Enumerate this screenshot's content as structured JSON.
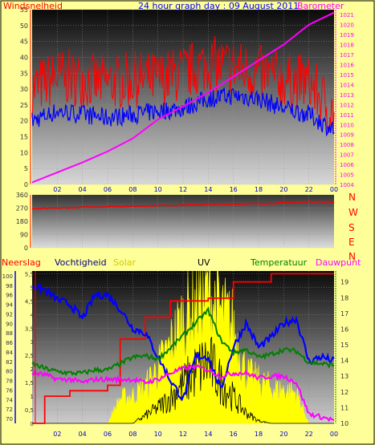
{
  "colors": {
    "background": "#FFFF99",
    "wind_label": "#FF0000",
    "barometer_label": "#FF00FF",
    "title": "#0000FF",
    "wind_gust": "#FF0000",
    "wind_avg": "#0000FF",
    "barometer_line": "#FF00FF",
    "wind_dir": "#FF0000",
    "rain": "#FF0000",
    "humidity": "#0000FF",
    "temperature": "#008000",
    "dewpoint": "#FF00FF",
    "uv": "#000000",
    "solar": "#FFFF00",
    "compass_letters": "#FF0000"
  },
  "header": {
    "title": "24 hour graph day : 09 August 2011",
    "left_label": "Windsnelheid",
    "right_label": "Barometer"
  },
  "compass": {
    "letters": [
      "N",
      "W",
      "S",
      "E",
      "N"
    ]
  },
  "bottom_header": {
    "rain_label": "Neerslag",
    "humidity_label": "Vochtigheid",
    "solar_label": "Solar",
    "uv_label": "UV",
    "temp_label": "Temperatuur",
    "dew_label": "Dauwpunt"
  },
  "x_ticks": [
    "02",
    "04",
    "06",
    "08",
    "10",
    "12",
    "14",
    "16",
    "18",
    "20",
    "22",
    "00"
  ],
  "chart_data": [
    {
      "type": "line",
      "name": "wind-barometer",
      "x_hours": [
        0,
        2,
        4,
        6,
        8,
        10,
        12,
        14,
        16,
        18,
        20,
        22,
        24
      ],
      "series": [
        {
          "name": "gust",
          "values": [
            30,
            34,
            33,
            32,
            33,
            33,
            35,
            38,
            37,
            35,
            33,
            32,
            22
          ]
        },
        {
          "name": "average",
          "values": [
            20,
            23,
            22,
            21,
            22,
            23,
            24,
            27,
            28,
            27,
            24,
            22,
            17
          ]
        },
        {
          "name": "barometer",
          "axis": "right",
          "values": [
            1004.2,
            1005.2,
            1006.2,
            1007.3,
            1008.6,
            1010.5,
            1011.8,
            1013.2,
            1014.8,
            1016.4,
            1018.0,
            1020.0,
            1021.2
          ]
        }
      ],
      "left_axis": {
        "ylim": [
          0,
          55
        ],
        "ticks": [
          "0",
          "5",
          "10",
          "15",
          "20",
          "25",
          "30",
          "35",
          "40",
          "45",
          "50",
          "55"
        ]
      },
      "right_axis": {
        "ylim": [
          1004,
          1021.5
        ],
        "ticks": [
          "1004",
          "1005",
          "1006",
          "1007",
          "1008",
          "1009",
          "1010",
          "1011",
          "1012",
          "1013",
          "1014",
          "1015",
          "1016",
          "1017",
          "1018",
          "1019",
          "1020",
          "1021"
        ]
      }
    },
    {
      "type": "line",
      "name": "wind-direction",
      "x_hours": [
        0,
        2,
        4,
        6,
        8,
        10,
        12,
        14,
        16,
        18,
        20,
        22,
        24
      ],
      "series": [
        {
          "name": "direction",
          "values": [
            265,
            270,
            275,
            280,
            283,
            287,
            290,
            295,
            298,
            300,
            305,
            315,
            310
          ]
        }
      ],
      "left_axis": {
        "ylim": [
          0,
          360
        ],
        "ticks": [
          "0",
          "90",
          "180",
          "270",
          "360"
        ]
      }
    },
    {
      "type": "line",
      "name": "climate",
      "x_hours": [
        0,
        1,
        2,
        3,
        4,
        5,
        6,
        7,
        8,
        9,
        10,
        11,
        12,
        13,
        14,
        15,
        16,
        17,
        18,
        19,
        20,
        21,
        22,
        23,
        24
      ],
      "series": [
        {
          "name": "rain",
          "axis": "mm",
          "values": [
            0,
            1.0,
            1.0,
            1.2,
            1.2,
            1.2,
            1.4,
            3.1,
            3.1,
            3.9,
            3.9,
            4.5,
            4.5,
            4.5,
            4.6,
            4.6,
            5.2,
            5.2,
            5.2,
            5.5,
            5.5,
            5.5,
            5.5,
            5.5,
            5.5
          ]
        },
        {
          "name": "humidity",
          "axis": "pct",
          "values": [
            98,
            97,
            95,
            94,
            91,
            96,
            96,
            93,
            89,
            88,
            83,
            78,
            74,
            83,
            83,
            76,
            85,
            90,
            85,
            87,
            90,
            91,
            82,
            83,
            82
          ]
        },
        {
          "name": "temperature",
          "axis": "temp",
          "values": [
            13.8,
            13.5,
            13.3,
            13.2,
            13.2,
            13.4,
            13.4,
            13.8,
            14.2,
            14.3,
            14.1,
            14.8,
            15.6,
            16.4,
            17.2,
            15.3,
            14.5,
            14.7,
            14.2,
            14.4,
            14.7,
            14.6,
            13.9,
            13.8,
            13.7
          ]
        },
        {
          "name": "dewpoint",
          "axis": "temp",
          "values": [
            13.2,
            13.1,
            12.8,
            12.8,
            12.6,
            12.8,
            12.8,
            12.8,
            12.8,
            12.6,
            12.8,
            13.2,
            13.5,
            13.6,
            13.4,
            13.0,
            13.2,
            13.2,
            12.9,
            13.0,
            13.0,
            12.6,
            10.6,
            10.4,
            10.2
          ]
        },
        {
          "name": "uv",
          "axis": "mm",
          "values": [
            0,
            0,
            0,
            0,
            0,
            0,
            0,
            0,
            0,
            0.3,
            0.6,
            1.0,
            1.5,
            2.0,
            2.4,
            1.6,
            1.0,
            0.4,
            0.1,
            0,
            0,
            0,
            0,
            0,
            0
          ]
        },
        {
          "name": "solar",
          "axis": "mm",
          "values": [
            0,
            0,
            0,
            0,
            0,
            0,
            0,
            0.9,
            1.0,
            1.3,
            2.0,
            2.8,
            3.8,
            4.4,
            4.8,
            4.0,
            3.5,
            1.8,
            1.5,
            1.3,
            1.2,
            1.1,
            0,
            0,
            0
          ]
        }
      ],
      "rain_axis": {
        "ylim": [
          0,
          5.6
        ],
        "ticks": [
          "0",
          "0,5",
          "1",
          "1,5",
          "2",
          "2,5",
          "3",
          "3,5",
          "4",
          "4,5",
          "5",
          "5,5"
        ]
      },
      "humidity_axis": {
        "ylim": [
          69,
          101
        ],
        "ticks": [
          "70",
          "72",
          "74",
          "76",
          "78",
          "80",
          "82",
          "84",
          "86",
          "88",
          "90",
          "92",
          "94",
          "96",
          "98",
          "100"
        ]
      },
      "temp_axis": {
        "ylim": [
          10,
          19.7
        ],
        "ticks": [
          "10",
          "11",
          "12",
          "13",
          "14",
          "15",
          "16",
          "17",
          "18",
          "19"
        ]
      }
    }
  ]
}
